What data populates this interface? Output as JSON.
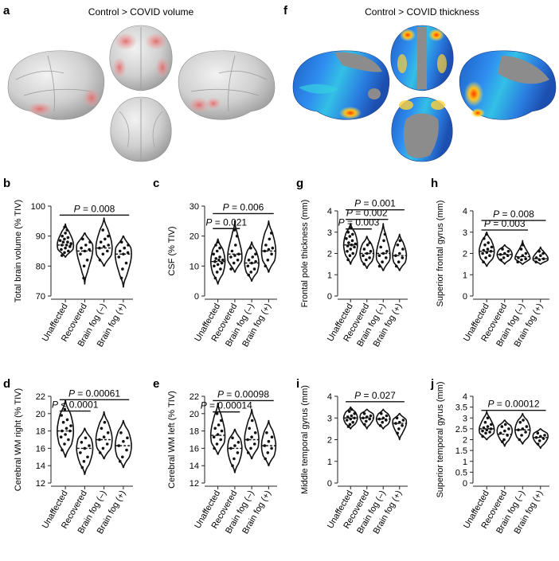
{
  "figure": {
    "panel_a": {
      "letter": "a",
      "title": "Control > COVID volume"
    },
    "panel_f": {
      "letter": "f",
      "title": "Control > COVID thickness"
    }
  },
  "chart_data": [
    {
      "panel": "b",
      "type": "violin",
      "ylabel": "Total brain volume (% TIV)",
      "ylim": [
        70,
        100
      ],
      "yticks": [
        70,
        80,
        90,
        100
      ],
      "categories": [
        "Unaffected",
        "Recovered",
        "Brain fog (–)",
        "Brain fog (+)"
      ],
      "distributions": [
        {
          "min": 83,
          "max": 94,
          "median": 87,
          "mode": 87,
          "points": [
            83.5,
            84.5,
            85,
            85.5,
            86,
            86.5,
            87,
            87,
            87.5,
            88,
            88,
            88.5,
            89,
            89.5,
            90,
            91,
            92,
            93
          ]
        },
        {
          "min": 74,
          "max": 91,
          "median": 85,
          "mode": 86,
          "points": [
            76,
            80,
            82,
            84,
            85,
            85.5,
            86,
            87,
            88,
            89
          ]
        },
        {
          "min": 80,
          "max": 96,
          "median": 86,
          "mode": 86,
          "points": [
            82,
            84,
            85,
            86,
            86.5,
            87,
            88,
            89,
            90,
            92
          ]
        },
        {
          "min": 73,
          "max": 90,
          "median": 84,
          "mode": 84,
          "points": [
            76,
            79,
            81,
            83,
            84,
            84.5,
            85,
            86,
            87,
            88
          ]
        }
      ],
      "significance": [
        {
          "label": "P = 0.008",
          "from": 0,
          "to": 3,
          "y": 97
        }
      ]
    },
    {
      "panel": "c",
      "type": "violin",
      "ylabel": "CSF (% TIV)",
      "ylim": [
        0,
        30
      ],
      "yticks": [
        0,
        10,
        20,
        30
      ],
      "categories": [
        "Unaffected",
        "Recovered",
        "Brain fog (–)",
        "Brain fog (+)"
      ],
      "distributions": [
        {
          "min": 4,
          "max": 19,
          "median": 11.5,
          "mode": 11.5,
          "points": [
            6,
            8,
            9,
            10,
            10.5,
            11,
            11.5,
            12,
            12,
            12.5,
            13,
            14,
            15,
            16,
            17,
            18
          ]
        },
        {
          "min": 8,
          "max": 25,
          "median": 14,
          "mode": 13,
          "points": [
            9,
            11,
            12,
            13,
            13.5,
            14,
            15,
            17,
            20,
            22
          ]
        },
        {
          "min": 5,
          "max": 18,
          "median": 11,
          "mode": 11,
          "points": [
            7,
            8,
            9,
            10,
            11,
            11.5,
            12,
            13,
            14,
            16
          ]
        },
        {
          "min": 8,
          "max": 25,
          "median": 15,
          "mode": 15,
          "points": [
            10,
            12,
            14,
            15,
            15.5,
            16,
            17,
            19,
            21
          ]
        }
      ],
      "significance": [
        {
          "label": "P = 0.021",
          "from": 0,
          "to": 1,
          "y": 22.5
        },
        {
          "label": "P = 0.006",
          "from": 0,
          "to": 3,
          "y": 27.5
        }
      ]
    },
    {
      "panel": "g",
      "type": "violin",
      "ylabel": "Frontal pole thickness (mm)",
      "ylim": [
        0,
        4
      ],
      "yticks": [
        0,
        1,
        2,
        3,
        4
      ],
      "categories": [
        "Unaffected",
        "Recovered",
        "Brain fog (–)",
        "Brain fog (+)"
      ],
      "distributions": [
        {
          "min": 1.5,
          "max": 3.4,
          "median": 2.4,
          "mode": 2.4,
          "points": [
            1.7,
            1.9,
            2.0,
            2.1,
            2.2,
            2.3,
            2.35,
            2.4,
            2.45,
            2.5,
            2.6,
            2.7,
            2.8,
            2.9,
            3.0,
            3.2
          ]
        },
        {
          "min": 1.3,
          "max": 2.8,
          "median": 2.0,
          "mode": 2.0,
          "points": [
            1.5,
            1.7,
            1.8,
            1.9,
            2.0,
            2.1,
            2.2,
            2.4,
            2.5
          ]
        },
        {
          "min": 1.2,
          "max": 3.4,
          "median": 2.0,
          "mode": 1.9,
          "points": [
            1.4,
            1.6,
            1.8,
            1.9,
            2.0,
            2.1,
            2.3,
            2.6,
            2.9
          ]
        },
        {
          "min": 1.2,
          "max": 2.9,
          "median": 1.9,
          "mode": 1.9,
          "points": [
            1.4,
            1.6,
            1.8,
            1.9,
            2.0,
            2.2,
            2.4,
            2.6
          ]
        }
      ],
      "significance": [
        {
          "label": "P = 0.003",
          "from": 0,
          "to": 1,
          "y": 3.15
        },
        {
          "label": "P = 0.002",
          "from": 0,
          "to": 2,
          "y": 3.6
        },
        {
          "label": "P = 0.001",
          "from": 0,
          "to": 3,
          "y": 4.05
        }
      ]
    },
    {
      "panel": "h",
      "type": "violin",
      "ylabel": "Superior frontal gyrus (mm)",
      "ylim": [
        0,
        4
      ],
      "yticks": [
        0,
        1,
        2,
        3,
        4
      ],
      "categories": [
        "Unaffected",
        "Recovered",
        "Brain fog (–)",
        "Brain fog (+)"
      ],
      "distributions": [
        {
          "min": 1.4,
          "max": 3.0,
          "median": 2.1,
          "mode": 2.1,
          "points": [
            1.6,
            1.8,
            1.9,
            2.0,
            2.05,
            2.1,
            2.15,
            2.2,
            2.3,
            2.4,
            2.5,
            2.7,
            2.9
          ]
        },
        {
          "min": 1.5,
          "max": 2.4,
          "median": 1.95,
          "mode": 1.95,
          "points": [
            1.7,
            1.8,
            1.9,
            1.95,
            2.0,
            2.1,
            2.2
          ]
        },
        {
          "min": 1.5,
          "max": 2.6,
          "median": 1.85,
          "mode": 1.75,
          "points": [
            1.6,
            1.7,
            1.75,
            1.8,
            1.9,
            2.0,
            2.2,
            2.4
          ]
        },
        {
          "min": 1.5,
          "max": 2.3,
          "median": 1.75,
          "mode": 1.75,
          "points": [
            1.6,
            1.7,
            1.75,
            1.8,
            1.9,
            2.0,
            2.1
          ]
        }
      ],
      "significance": [
        {
          "label": "P = 0.003",
          "from": 0,
          "to": 2,
          "y": 3.1
        },
        {
          "label": "P = 0.008",
          "from": 0,
          "to": 3,
          "y": 3.55
        }
      ]
    },
    {
      "panel": "d",
      "type": "violin",
      "ylabel": "Cerebral WM right (% TIV)",
      "ylim": [
        12,
        22
      ],
      "yticks": [
        12,
        14,
        16,
        18,
        20,
        22
      ],
      "categories": [
        "Unaffected",
        "Recovered",
        "Brain fog (–)",
        "Brain fog (+)"
      ],
      "distributions": [
        {
          "min": 15,
          "max": 21.5,
          "median": 18,
          "mode": 18,
          "points": [
            15.8,
            16.5,
            17,
            17.3,
            17.6,
            18,
            18,
            18.3,
            18.6,
            19,
            19.3,
            19.8,
            20.5
          ]
        },
        {
          "min": 13,
          "max": 18.3,
          "median": 16,
          "mode": 16,
          "points": [
            13.8,
            14.5,
            15,
            15.5,
            16,
            16.3,
            16.7,
            17.2
          ]
        },
        {
          "min": 14.8,
          "max": 20.2,
          "median": 17,
          "mode": 17,
          "points": [
            15.5,
            16,
            16.5,
            17,
            17.3,
            17.8,
            18.3,
            19
          ]
        },
        {
          "min": 13.8,
          "max": 19.2,
          "median": 16.3,
          "mode": 16.3,
          "points": [
            14.5,
            15,
            15.8,
            16.3,
            16.8,
            17.2,
            17.8
          ]
        }
      ],
      "significance": [
        {
          "label": "P < 0.0001",
          "from": 0,
          "to": 1,
          "y": 20.3
        },
        {
          "label": "P = 0.00061",
          "from": 0,
          "to": 3,
          "y": 21.6
        }
      ]
    },
    {
      "panel": "e",
      "type": "violin",
      "ylabel": "Cerebral WM left (% TIV)",
      "ylim": [
        12,
        22
      ],
      "yticks": [
        12,
        14,
        16,
        18,
        20,
        22
      ],
      "categories": [
        "Unaffected",
        "Recovered",
        "Brain fog (–)",
        "Brain fog (+)"
      ],
      "distributions": [
        {
          "min": 15.3,
          "max": 21.2,
          "median": 17.5,
          "mode": 17.5,
          "points": [
            16,
            16.5,
            17,
            17.3,
            17.6,
            18,
            18.3,
            18.7,
            19.2,
            20
          ]
        },
        {
          "min": 13.2,
          "max": 18.2,
          "median": 16,
          "mode": 16,
          "points": [
            14,
            14.8,
            15.5,
            16,
            16.3,
            16.7,
            17.2
          ]
        },
        {
          "min": 14.8,
          "max": 20.5,
          "median": 17,
          "mode": 17,
          "points": [
            15.5,
            16,
            16.5,
            17,
            17.3,
            17.8,
            18.3,
            19.2
          ]
        },
        {
          "min": 14,
          "max": 19.2,
          "median": 16.3,
          "mode": 16.3,
          "points": [
            14.8,
            15.5,
            16,
            16.3,
            16.8,
            17.3,
            17.8
          ]
        }
      ],
      "significance": [
        {
          "label": "P = 0.00014",
          "from": 0,
          "to": 1,
          "y": 20.2
        },
        {
          "label": "P = 0.00098",
          "from": 0,
          "to": 3,
          "y": 21.5
        }
      ]
    },
    {
      "panel": "i",
      "type": "violin",
      "ylabel": "Middle temporal gyrus (mm)",
      "ylim": [
        0,
        4
      ],
      "yticks": [
        0,
        1,
        2,
        3,
        4
      ],
      "categories": [
        "Unaffected",
        "Recovered",
        "Brain fog (–)",
        "Brain fog (+)"
      ],
      "distributions": [
        {
          "min": 2.5,
          "max": 3.5,
          "median": 3.0,
          "mode": 3.0,
          "points": [
            2.6,
            2.7,
            2.8,
            2.9,
            2.95,
            3.0,
            3.05,
            3.1,
            3.2,
            3.3,
            3.4
          ]
        },
        {
          "min": 2.5,
          "max": 3.4,
          "median": 3.0,
          "mode": 3.05,
          "points": [
            2.7,
            2.85,
            2.95,
            3.0,
            3.05,
            3.1,
            3.2
          ]
        },
        {
          "min": 2.5,
          "max": 3.4,
          "median": 2.95,
          "mode": 2.95,
          "points": [
            2.65,
            2.8,
            2.9,
            2.95,
            3.0,
            3.1,
            3.2
          ]
        },
        {
          "min": 2.0,
          "max": 3.2,
          "median": 2.75,
          "mode": 2.8,
          "points": [
            2.3,
            2.5,
            2.65,
            2.75,
            2.8,
            2.9,
            3.0
          ]
        }
      ],
      "significance": [
        {
          "label": "P = 0.027",
          "from": 0,
          "to": 3,
          "y": 3.75
        }
      ]
    },
    {
      "panel": "j",
      "type": "violin",
      "ylabel": "Superior temporal gyrus (mm)",
      "ylim": [
        0,
        4
      ],
      "yticks": [
        0,
        0.5,
        1.0,
        1.5,
        2.0,
        2.5,
        3.0,
        3.5,
        4.0
      ],
      "categories": [
        "Unaffected",
        "Recovered",
        "Brain fog (–)",
        "Brain fog (+)"
      ],
      "distributions": [
        {
          "min": 2.0,
          "max": 3.3,
          "median": 2.5,
          "mode": 2.45,
          "points": [
            2.15,
            2.3,
            2.35,
            2.4,
            2.45,
            2.5,
            2.55,
            2.6,
            2.7,
            2.8,
            3.0
          ]
        },
        {
          "min": 1.7,
          "max": 2.9,
          "median": 2.25,
          "mode": 2.4,
          "points": [
            1.9,
            2.0,
            2.2,
            2.3,
            2.4,
            2.5,
            2.6,
            2.7
          ]
        },
        {
          "min": 1.8,
          "max": 3.2,
          "median": 2.45,
          "mode": 2.45,
          "points": [
            2.0,
            2.2,
            2.35,
            2.45,
            2.5,
            2.6,
            2.8,
            2.9
          ]
        },
        {
          "min": 1.6,
          "max": 2.5,
          "median": 2.1,
          "mode": 2.15,
          "points": [
            1.8,
            1.95,
            2.05,
            2.1,
            2.15,
            2.2,
            2.3
          ]
        }
      ],
      "significance": [
        {
          "label": "P = 0.00012",
          "from": 0,
          "to": 3,
          "y": 3.35
        }
      ]
    }
  ]
}
